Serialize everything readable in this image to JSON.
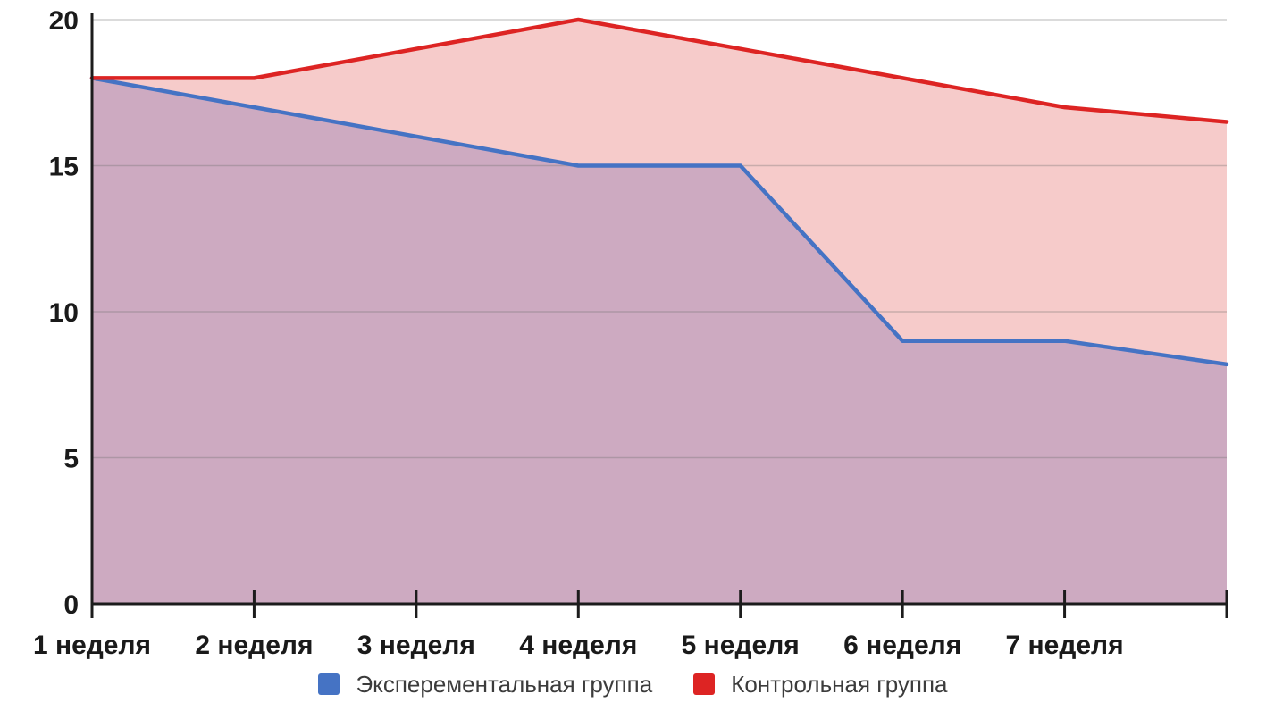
{
  "chart_data": {
    "type": "area",
    "title": "",
    "xlabel": "",
    "ylabel": "",
    "categories": [
      "1 неделя",
      "2 неделя",
      "3 неделя",
      "4 неделя",
      "5 неделя",
      "6 неделя",
      "7 неделя",
      ""
    ],
    "series": [
      {
        "name": "Эксперементальная группа",
        "line_color": "#4573c4",
        "fill_color": "#cdaac1",
        "values": [
          18,
          17,
          16,
          15,
          15,
          9,
          9,
          8.2
        ]
      },
      {
        "name": "Контрольная группа",
        "line_color": "#dd2423",
        "fill_color": "#f6cbca",
        "values": [
          18,
          18,
          19,
          20,
          19,
          18,
          17,
          16.5
        ]
      }
    ],
    "ylim": [
      0,
      20
    ],
    "yticks": [
      0,
      5,
      10,
      15,
      20
    ],
    "grid": true,
    "legend_position": "bottom",
    "colors": {
      "axis": "#1c1c1c",
      "grid": "#6e6e6e",
      "background": "#ffffff",
      "label": "#1a1a1a",
      "legend_text": "#3c3c3c"
    }
  }
}
